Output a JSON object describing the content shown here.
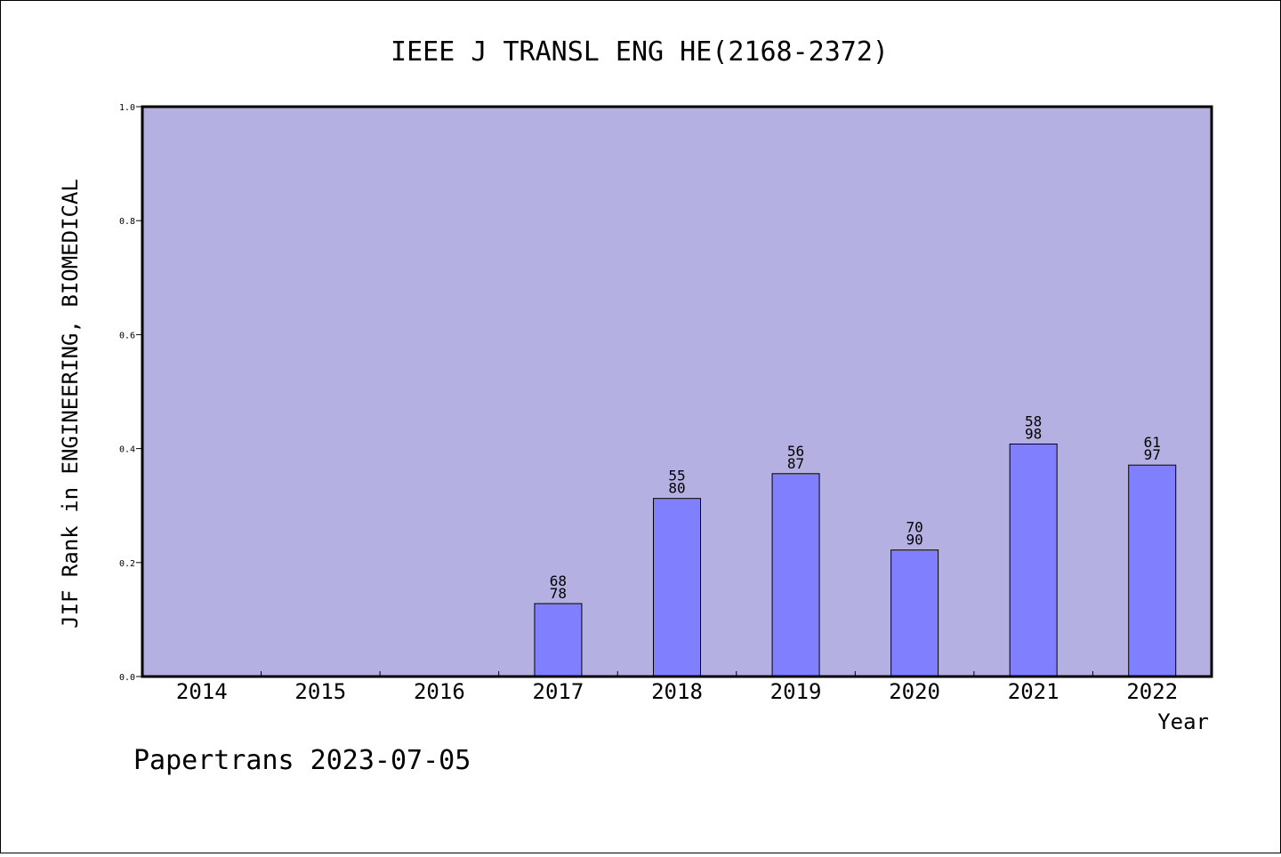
{
  "chart_data": {
    "type": "bar",
    "title": "IEEE J TRANSL ENG HE(2168-2372)",
    "xlabel": "Year",
    "ylabel": "JIF Rank in ENGINEERING, BIOMEDICAL",
    "ylim": [
      0,
      1
    ],
    "yticks": [
      "0.0",
      "0.2",
      "0.4",
      "0.6",
      "0.8",
      "1.0"
    ],
    "categories": [
      "2014",
      "2015",
      "2016",
      "2017",
      "2018",
      "2019",
      "2020",
      "2021",
      "2022"
    ],
    "values": [
      null,
      null,
      null,
      0.128,
      0.3125,
      0.356,
      0.222,
      0.408,
      0.371
    ],
    "rank_labels": [
      null,
      null,
      null,
      {
        "rank": "68",
        "total": "78"
      },
      {
        "rank": "55",
        "total": "80"
      },
      {
        "rank": "56",
        "total": "87"
      },
      {
        "rank": "70",
        "total": "90"
      },
      {
        "rank": "58",
        "total": "98"
      },
      {
        "rank": "61",
        "total": "97"
      }
    ],
    "plot_background": "#b5b0e2",
    "bar_color": "#8080ff",
    "grid": false,
    "legend": "none"
  },
  "footer": {
    "source": "Papertrans 2023-07-05"
  }
}
